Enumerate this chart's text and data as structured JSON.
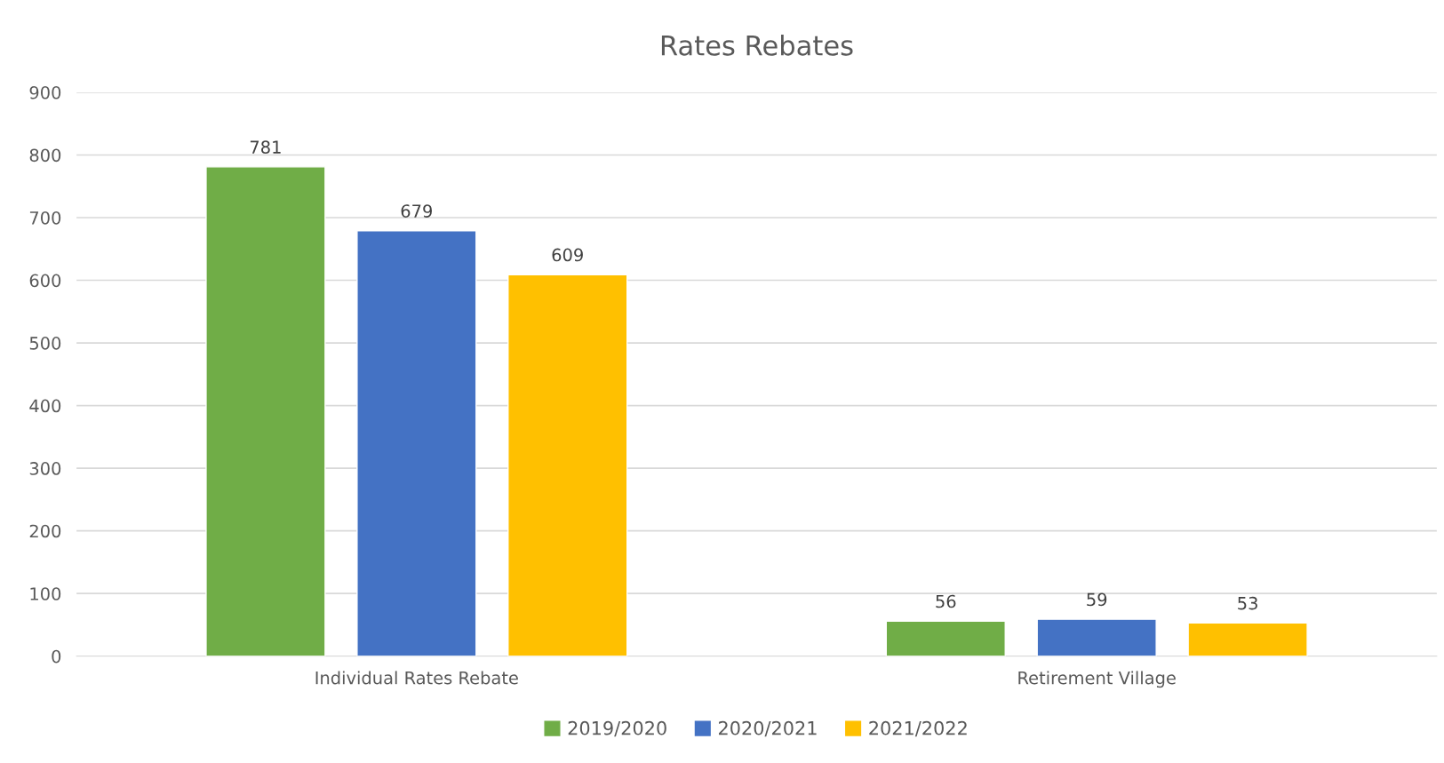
{
  "chart_data": {
    "type": "bar",
    "title": "Rates Rebates",
    "categories": [
      "Individual Rates Rebate",
      "Retirement Village"
    ],
    "series": [
      {
        "name": "2019/2020",
        "color": "#70ad47",
        "values": [
          781,
          56
        ]
      },
      {
        "name": "2020/2021",
        "color": "#4472c4",
        "values": [
          679,
          59
        ]
      },
      {
        "name": "2021/2022",
        "color": "#ffc000",
        "values": [
          609,
          53
        ]
      }
    ],
    "ylim": [
      0,
      900
    ],
    "yticks": [
      0,
      100,
      200,
      300,
      400,
      500,
      600,
      700,
      800,
      900
    ],
    "grid": "y",
    "legend": "bottom",
    "data_labels": true
  }
}
